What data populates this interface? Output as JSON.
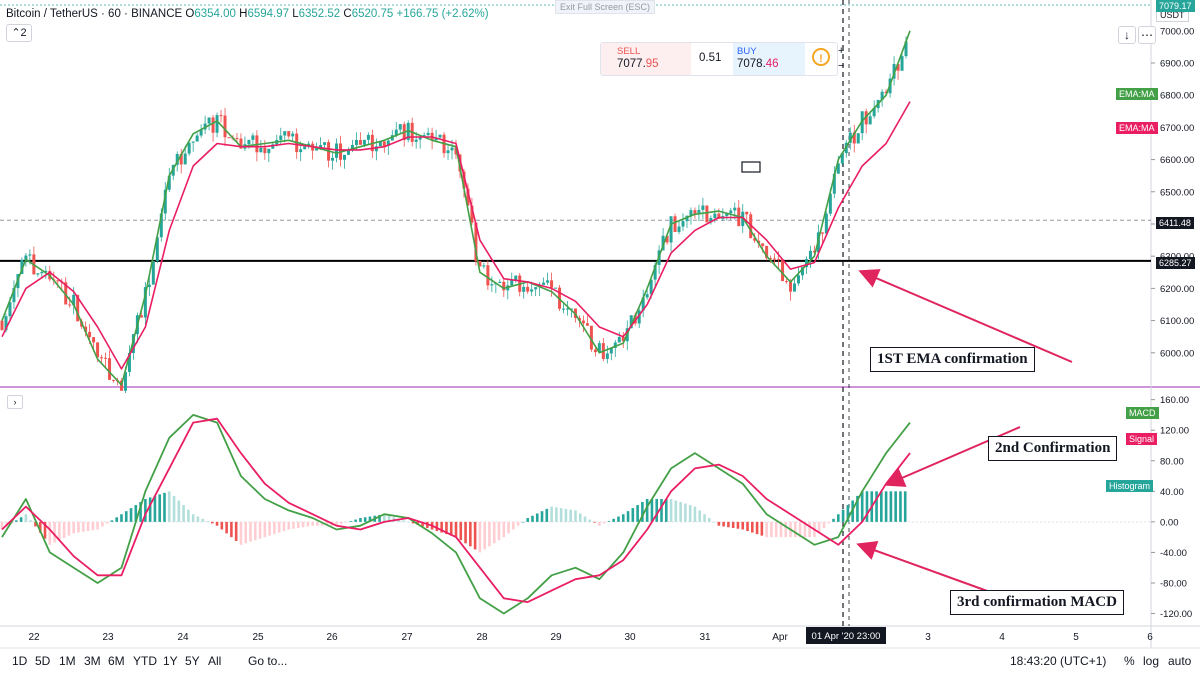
{
  "header": {
    "symbol": "Bitcoin / TetherUS · 60 · BINANCE",
    "o_label": "O",
    "o": "6354.00",
    "h_label": "H",
    "h": "6594.97",
    "l_label": "L",
    "l": "6352.52",
    "c_label": "C",
    "c": "6520.75",
    "change": "+166.75 (+2.62%)",
    "collapse": "2"
  },
  "exit_fullscreen": "Exit Full Screen (ESC)",
  "trade_panel": {
    "sell_label": "SELL",
    "sell_price_a": "7077.",
    "sell_price_b": "95",
    "spread": "0.51",
    "buy_label": "BUY",
    "buy_price_a": "7078.",
    "buy_price_b": "46",
    "info_icon": "!"
  },
  "zoom": {
    "plus": "+",
    "minus": "−"
  },
  "top_right": {
    "download": "↓",
    "settings": "⋯"
  },
  "currency": "USDT",
  "price_axis": {
    "ticks": [
      "7000.00",
      "6900.00",
      "6800.00",
      "6700.00",
      "6600.00",
      "6500.00",
      "6400.00",
      "6300.00",
      "6200.00",
      "6100.00",
      "6000.00"
    ],
    "last_price_tag": "7079.17",
    "ema_tag_1": "EMA:MA",
    "ema_tag_2": "EMA:MA",
    "hline_tag_1": "6411.48",
    "hline_tag_2": "6285.27"
  },
  "macd_axis": {
    "ticks": [
      "160.00",
      "120.00",
      "80.00",
      "40.00",
      "0.00",
      "-40.00",
      "-80.00",
      "-120.00"
    ],
    "macd_tag": "MACD",
    "signal_tag": "Signal",
    "histogram_tag": "Histogram"
  },
  "time_axis": {
    "labels": [
      "22",
      "23",
      "24",
      "25",
      "26",
      "27",
      "28",
      "29",
      "30",
      "31",
      "Apr",
      "2",
      "3",
      "4",
      "5",
      "6"
    ],
    "cursor_label": "01 Apr '20   23:00"
  },
  "annotations": {
    "first": "1ST EMA confirmation",
    "second": "2nd Confirmation",
    "third": "3rd confirmation MACD"
  },
  "bottom_bar": {
    "ranges": [
      "1D",
      "5D",
      "1M",
      "3M",
      "6M",
      "YTD",
      "1Y",
      "5Y",
      "All"
    ],
    "goto": "Go to...",
    "clock": "18:43:20 (UTC+1)",
    "percent": "%",
    "log": "log",
    "auto": "auto"
  },
  "colors": {
    "up": "#26a69a",
    "down": "#ef5350",
    "ema_fast": "#43a047",
    "ema_slow": "#e91e63",
    "macd": "#43a047",
    "signal": "#e91e63",
    "arrow": "#e0245e",
    "hline": "#000000"
  },
  "chart_data": {
    "type": "line",
    "price_ylim": [
      5900,
      7080
    ],
    "macd_ylim": [
      -135,
      170
    ],
    "x_days": [
      "22",
      "23",
      "24",
      "25",
      "26",
      "27",
      "28",
      "29",
      "30",
      "31",
      "Apr 1",
      "2"
    ],
    "price_series": [
      {
        "values": [
          6100,
          6290,
          6240,
          6150,
          5980,
          5900,
          6180,
          6550,
          6680,
          6720,
          6640,
          6650,
          6660,
          6640,
          6620,
          6640,
          6660,
          6690,
          6660,
          6640,
          6250,
          6200,
          6220,
          6190,
          6120,
          6000,
          6030,
          6200,
          6400,
          6430,
          6440,
          6420,
          6300,
          6220,
          6300,
          6600,
          6720,
          6800,
          7000
        ]
      },
      {
        "values": [
          6050,
          6200,
          6250,
          6190,
          6080,
          5950,
          6080,
          6380,
          6580,
          6650,
          6640,
          6640,
          6650,
          6640,
          6630,
          6630,
          6640,
          6670,
          6670,
          6650,
          6350,
          6230,
          6220,
          6200,
          6160,
          6080,
          6050,
          6150,
          6310,
          6380,
          6420,
          6420,
          6350,
          6260,
          6280,
          6450,
          6580,
          6650,
          6780
        ]
      }
    ],
    "macd_series": [
      {
        "name": "MACD",
        "values": [
          -20,
          30,
          -40,
          -60,
          -80,
          -60,
          40,
          110,
          140,
          130,
          60,
          30,
          15,
          5,
          -10,
          -5,
          10,
          5,
          -15,
          -40,
          -100,
          -120,
          -100,
          -70,
          -60,
          -75,
          -40,
          20,
          70,
          90,
          70,
          50,
          10,
          -10,
          -30,
          -20,
          40,
          90,
          130
        ]
      },
      {
        "name": "Signal",
        "values": [
          -10,
          20,
          -10,
          -45,
          -70,
          -70,
          10,
          70,
          130,
          135,
          90,
          50,
          25,
          10,
          -5,
          -10,
          0,
          5,
          -5,
          -20,
          -60,
          -100,
          -105,
          -90,
          -75,
          -70,
          -50,
          -10,
          40,
          70,
          75,
          60,
          30,
          10,
          -10,
          -30,
          0,
          50,
          90
        ]
      },
      {
        "name": "Histogram",
        "values": [
          -10,
          10,
          -30,
          -15,
          -10,
          10,
          30,
          40,
          10,
          -5,
          -30,
          -20,
          -10,
          -5,
          -5,
          5,
          10,
          0,
          -10,
          -20,
          -40,
          -20,
          5,
          20,
          15,
          -5,
          10,
          30,
          30,
          20,
          -5,
          -10,
          -20,
          -20,
          -20,
          10,
          40,
          40,
          40
        ]
      }
    ],
    "horizontal_lines": [
      6411.48,
      6285.27
    ]
  }
}
